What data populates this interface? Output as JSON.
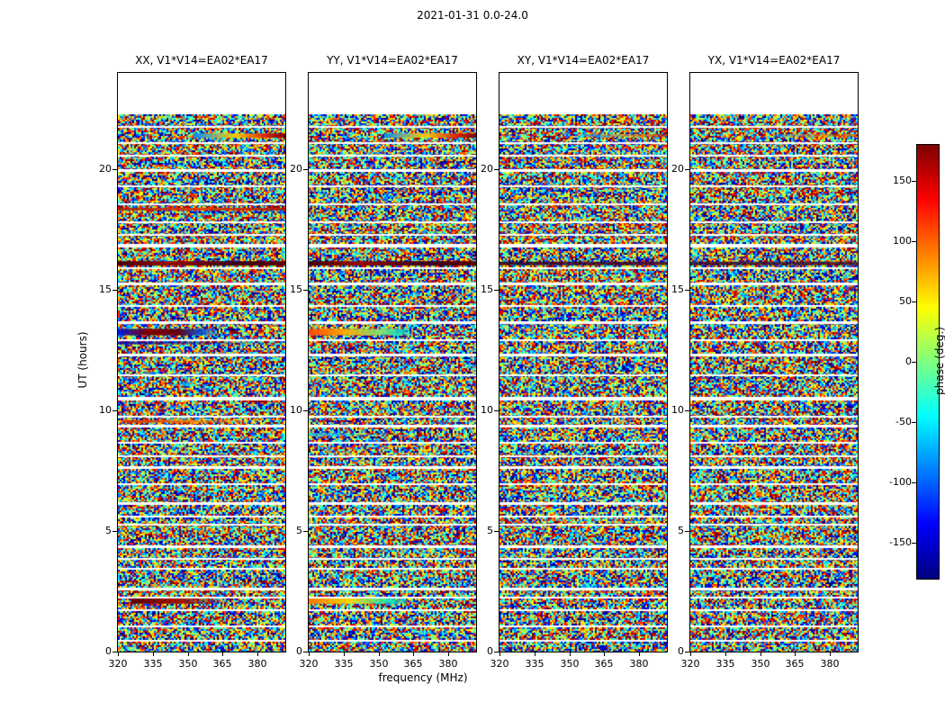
{
  "chart_data": {
    "type": "heatmap",
    "title": "2021-01-31 0.0-24.0",
    "xlabel": "frequency (MHz)",
    "ylabel": "UT (hours)",
    "x_range": [
      320,
      392
    ],
    "x_ticks": [
      320,
      335,
      350,
      365,
      380
    ],
    "y_range": [
      0,
      24
    ],
    "y_ticks": [
      0,
      5,
      10,
      15,
      20
    ],
    "data_extent_hours": [
      0,
      22.3
    ],
    "grid": false,
    "colorbar": {
      "label": "phase (deg.)",
      "min": -180,
      "max": 180,
      "ticks": [
        150,
        100,
        50,
        0,
        -50,
        -100,
        -150
      ],
      "colormap": "jet",
      "position": "right"
    },
    "panels": [
      {
        "id": "XX",
        "title": "XX, V1*V14=EA02*EA17",
        "seed": 101
      },
      {
        "id": "YY",
        "title": "YY, V1*V14=EA02*EA17",
        "seed": 202
      },
      {
        "id": "XY",
        "title": "XY, V1*V14=EA02*EA17",
        "seed": 303
      },
      {
        "id": "YX",
        "title": "YX, V1*V14=EA02*EA17",
        "seed": 404
      }
    ],
    "data_description": "Cross-correlation visibility phase waterfall (baseline V1*V14 = EA02*EA17) over 2021-01-31 0.0-24.0 UT. Phase is uniformly-random speckle noise in [-180,180] deg across 320-392 MHz; no data (white) above 22.3 UT; horizontal white rows are flagged times; coherent colored streaks listed in features.",
    "flagged_rows": [
      [
        21.75,
        2
      ],
      [
        21.1,
        2
      ],
      [
        20.55,
        2
      ],
      [
        19.95,
        3
      ],
      [
        19.3,
        2
      ],
      [
        18.55,
        2
      ],
      [
        17.8,
        2
      ],
      [
        17.3,
        2
      ],
      [
        16.85,
        4
      ],
      [
        15.9,
        2
      ],
      [
        15.25,
        3
      ],
      [
        14.35,
        2
      ],
      [
        13.65,
        3
      ],
      [
        12.9,
        2
      ],
      [
        12.3,
        3
      ],
      [
        11.45,
        2
      ],
      [
        10.5,
        4
      ],
      [
        9.75,
        2
      ],
      [
        9.35,
        3
      ],
      [
        8.65,
        2
      ],
      [
        8.1,
        2
      ],
      [
        7.65,
        3
      ],
      [
        6.95,
        2
      ],
      [
        6.15,
        3
      ],
      [
        5.6,
        2
      ],
      [
        5.25,
        2
      ],
      [
        4.35,
        3
      ],
      [
        3.85,
        2
      ],
      [
        3.45,
        2
      ],
      [
        2.6,
        3
      ],
      [
        2.25,
        2
      ],
      [
        1.7,
        2
      ],
      [
        1.05,
        2
      ],
      [
        0.45,
        2
      ]
    ],
    "features": {
      "XX": [
        {
          "ut": 21.4,
          "h": 5,
          "x0": 0.45,
          "x1": 1,
          "stops": [
            [
              0,
              "rgba(0,140,255,0.95)"
            ],
            [
              0.45,
              "rgba(255,210,0,0.95)"
            ],
            [
              0.8,
              "rgba(220,30,0,0.95)"
            ],
            [
              1,
              "rgba(120,0,0,0.95)"
            ]
          ]
        },
        {
          "ut": 18.35,
          "h": 3,
          "x0": 0,
          "x1": 1,
          "stops": [
            [
              0,
              "rgba(170,20,0,0.9)"
            ],
            [
              0.5,
              "rgba(230,60,0,0.9)"
            ],
            [
              1,
              "rgba(170,20,0,0.9)"
            ]
          ]
        },
        {
          "ut": 16.1,
          "h": 5,
          "x0": 0,
          "x1": 1,
          "stops": [
            [
              0,
              "rgba(70,0,10,1)"
            ],
            [
              0.3,
              "rgba(150,10,0,1)"
            ],
            [
              0.7,
              "rgba(60,0,30,1)"
            ],
            [
              1,
              "rgba(90,0,0,1)"
            ]
          ]
        },
        {
          "ut": 13.25,
          "h": 7,
          "x0": 0,
          "x1": 0.6,
          "stops": [
            [
              0,
              "rgba(0,30,220,1)"
            ],
            [
              0.3,
              "rgba(130,0,0,1)"
            ],
            [
              0.6,
              "rgba(100,0,20,1)"
            ],
            [
              0.85,
              "rgba(0,80,230,0.9)"
            ],
            [
              1,
              "rgba(0,80,230,0)"
            ]
          ]
        },
        {
          "ut": 12.8,
          "h": 3,
          "x0": 0,
          "x1": 1,
          "stops": [
            [
              0,
              "rgba(0,0,170,0.9)"
            ],
            [
              1,
              "rgba(0,0,170,0.1)"
            ]
          ]
        },
        {
          "ut": 9.55,
          "h": 3,
          "x0": 0.03,
          "x1": 0.8,
          "stops": [
            [
              0,
              "rgba(220,40,0,0.9)"
            ],
            [
              0.5,
              "rgba(255,120,0,0.85)"
            ],
            [
              1,
              "rgba(255,120,0,0)"
            ]
          ]
        },
        {
          "ut": 2.1,
          "h": 6,
          "x0": 0.08,
          "x1": 0.7,
          "stops": [
            [
              0,
              "rgba(90,0,0,1)"
            ],
            [
              0.45,
              "rgba(160,20,0,1)"
            ],
            [
              1,
              "rgba(160,20,0,0)"
            ]
          ]
        }
      ],
      "YY": [
        {
          "ut": 21.4,
          "h": 5,
          "x0": 0.45,
          "x1": 1,
          "stops": [
            [
              0,
              "rgba(0,140,255,0.95)"
            ],
            [
              0.45,
              "rgba(255,210,0,0.95)"
            ],
            [
              0.8,
              "rgba(220,30,0,0.95)"
            ],
            [
              1,
              "rgba(120,0,0,0.95)"
            ]
          ]
        },
        {
          "ut": 16.1,
          "h": 5,
          "x0": 0,
          "x1": 1,
          "stops": [
            [
              0,
              "rgba(70,0,10,1)"
            ],
            [
              0.3,
              "rgba(150,10,0,1)"
            ],
            [
              0.7,
              "rgba(60,0,30,1)"
            ],
            [
              1,
              "rgba(90,0,0,1)"
            ]
          ]
        },
        {
          "ut": 13.25,
          "h": 7,
          "x0": 0,
          "x1": 0.62,
          "stops": [
            [
              0,
              "rgba(255,70,0,1)"
            ],
            [
              0.35,
              "rgba(255,170,0,1)"
            ],
            [
              0.7,
              "rgba(120,230,120,0.9)"
            ],
            [
              0.9,
              "rgba(0,220,210,0.85)"
            ],
            [
              1,
              "rgba(0,220,210,0)"
            ]
          ]
        },
        {
          "ut": 9.0,
          "h": 3,
          "x0": 0,
          "x1": 0.55,
          "stops": [
            [
              0,
              "rgba(0,200,255,0.85)"
            ],
            [
              1,
              "rgba(0,200,255,0)"
            ]
          ]
        },
        {
          "ut": 2.1,
          "h": 6,
          "x0": 0,
          "x1": 0.62,
          "stops": [
            [
              0,
              "rgba(255,120,0,1)"
            ],
            [
              0.4,
              "rgba(255,220,0,0.95)"
            ],
            [
              0.8,
              "rgba(0,230,200,0.85)"
            ],
            [
              1,
              "rgba(0,230,200,0)"
            ]
          ]
        }
      ],
      "XY": [
        {
          "ut": 21.4,
          "h": 3,
          "x0": 0.5,
          "x1": 1,
          "stops": [
            [
              0,
              "rgba(0,130,255,0.7)"
            ],
            [
              0.6,
              "rgba(255,150,0,0.7)"
            ],
            [
              1,
              "rgba(200,20,0,0.7)"
            ]
          ]
        },
        {
          "ut": 16.1,
          "h": 4,
          "x0": 0,
          "x1": 1,
          "stops": [
            [
              0,
              "rgba(40,0,50,0.85)"
            ],
            [
              1,
              "rgba(70,0,40,0.85)"
            ]
          ]
        }
      ],
      "YX": [
        {
          "ut": 21.4,
          "h": 3,
          "x0": 0.5,
          "x1": 1,
          "stops": [
            [
              0,
              "rgba(0,130,255,0.6)"
            ],
            [
              0.6,
              "rgba(255,150,0,0.6)"
            ],
            [
              1,
              "rgba(200,20,0,0.6)"
            ]
          ]
        },
        {
          "ut": 16.1,
          "h": 4,
          "x0": 0,
          "x1": 1,
          "stops": [
            [
              0,
              "rgba(40,0,50,0.8)"
            ],
            [
              1,
              "rgba(70,0,40,0.8)"
            ]
          ]
        }
      ]
    }
  }
}
